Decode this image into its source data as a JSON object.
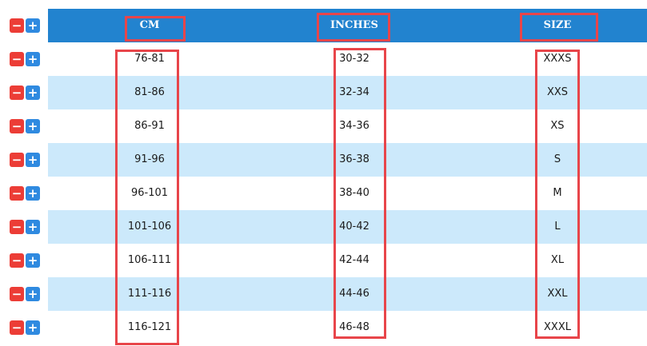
{
  "table": {
    "headers": [
      "CM",
      "INCHES",
      "SIZE"
    ],
    "rows": [
      {
        "cm": "76-81",
        "inches": "30-32",
        "size": "XXXS"
      },
      {
        "cm": "81-86",
        "inches": "32-34",
        "size": "XXS"
      },
      {
        "cm": "86-91",
        "inches": "34-36",
        "size": "XS"
      },
      {
        "cm": "91-96",
        "inches": "36-38",
        "size": "S"
      },
      {
        "cm": "96-101",
        "inches": "38-40",
        "size": "M"
      },
      {
        "cm": "101-106",
        "inches": "40-42",
        "size": "L"
      },
      {
        "cm": "106-111",
        "inches": "42-44",
        "size": "XL"
      },
      {
        "cm": "111-116",
        "inches": "44-46",
        "size": "XXL"
      },
      {
        "cm": "116-121",
        "inches": "46-48",
        "size": "XXXL"
      }
    ]
  },
  "row_controls": {
    "remove_symbol": "−",
    "add_symbol": "+"
  },
  "colors": {
    "header_bg": "#2283cf",
    "alt_row_bg": "#cce9fb",
    "highlight_border": "#e8454a",
    "remove_button": "#ec3d36",
    "add_button": "#2f8ae0"
  }
}
